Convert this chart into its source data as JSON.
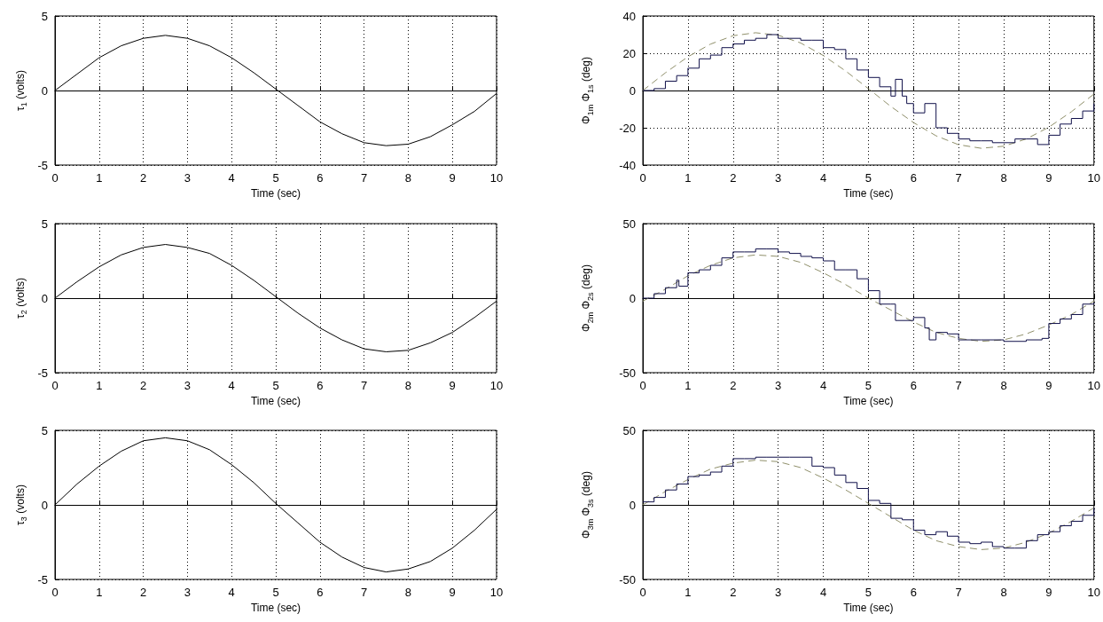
{
  "chart_data": [
    {
      "type": "line",
      "xlabel": "Time (sec)",
      "ylabel": "τ$_{1}$ (volts)",
      "xlim": [
        0,
        10
      ],
      "xticks": [
        0,
        1,
        2,
        3,
        4,
        5,
        6,
        7,
        8,
        9,
        10
      ],
      "ylim": [
        -5,
        5
      ],
      "yticks": [
        -5,
        0,
        5
      ],
      "grid": true,
      "marker": "none",
      "x": [
        0,
        0.5,
        1,
        1.5,
        2,
        2.5,
        3,
        3.5,
        4,
        4.5,
        5,
        5.5,
        6,
        6.5,
        7,
        7.5,
        8,
        8.5,
        9,
        9.5,
        10
      ],
      "series": [
        {
          "color": "#000000",
          "values": [
            0,
            1.1,
            2.2,
            3.0,
            3.5,
            3.7,
            3.5,
            3.0,
            2.2,
            1.2,
            0.1,
            -1.0,
            -2.1,
            -2.9,
            -3.5,
            -3.7,
            -3.6,
            -3.1,
            -2.3,
            -1.4,
            -0.2
          ]
        }
      ]
    },
    {
      "type": "step",
      "xlabel": "Time (sec)",
      "ylabel": "Φ$_{1m}$ Φ$_{1s}$ (deg)",
      "xlim": [
        0,
        10
      ],
      "xticks": [
        0,
        1,
        2,
        3,
        4,
        5,
        6,
        7,
        8,
        9,
        10
      ],
      "ylim": [
        -40,
        40
      ],
      "yticks": [
        -40,
        -20,
        0,
        20,
        40
      ],
      "grid": true,
      "marker": "none",
      "series": [
        {
          "type": "line",
          "line_style": "dashed",
          "color": "#8f8f6a",
          "x": [
            0,
            0.5,
            1,
            1.5,
            2,
            2.5,
            3,
            3.5,
            4,
            4.5,
            5,
            5.5,
            6,
            6.5,
            7,
            7.5,
            8,
            8.5,
            9,
            9.5,
            10
          ],
          "values": [
            0,
            9.5,
            18.1,
            24.9,
            29.4,
            31,
            29.7,
            25.5,
            18.8,
            10.4,
            1,
            -8.6,
            -17.2,
            -24.3,
            -29.1,
            -31,
            -29.9,
            -26,
            -19.7,
            -11.4,
            -1.9
          ]
        },
        {
          "color": "#10104a",
          "x": [
            0,
            0.25,
            0.5,
            0.75,
            1,
            1.25,
            1.5,
            1.75,
            2,
            2.25,
            2.5,
            2.75,
            3,
            3.25,
            3.5,
            3.75,
            4,
            4.25,
            4.5,
            4.75,
            5,
            5.25,
            5.5,
            5.6,
            5.75,
            5.85,
            6,
            6.25,
            6.5,
            6.75,
            7,
            7.25,
            7.5,
            7.75,
            8,
            8.25,
            8.5,
            8.75,
            9,
            9.25,
            9.5,
            9.75,
            10
          ],
          "values": [
            0,
            1,
            5,
            8,
            12,
            17,
            19,
            23,
            25,
            27,
            28,
            30,
            28,
            28,
            27,
            27,
            23,
            22,
            17,
            11,
            7,
            2,
            -3,
            6,
            -3,
            -7,
            -12,
            -7,
            -20,
            -23,
            -26,
            -27,
            -27,
            -28,
            -28,
            -26,
            -26,
            -29,
            -24,
            -18,
            -15,
            -11,
            -7
          ]
        }
      ]
    },
    {
      "type": "line",
      "xlabel": "Time (sec)",
      "ylabel": "τ$_{2}$ (volts)",
      "xlim": [
        0,
        10
      ],
      "xticks": [
        0,
        1,
        2,
        3,
        4,
        5,
        6,
        7,
        8,
        9,
        10
      ],
      "ylim": [
        -5,
        5
      ],
      "yticks": [
        -5,
        0,
        5
      ],
      "grid": true,
      "marker": "none",
      "x": [
        0,
        0.5,
        1,
        1.5,
        2,
        2.5,
        3,
        3.5,
        4,
        4.5,
        5,
        5.5,
        6,
        6.5,
        7,
        7.5,
        8,
        8.5,
        9,
        9.5,
        10
      ],
      "series": [
        {
          "color": "#000000",
          "values": [
            0,
            1.1,
            2.1,
            2.9,
            3.4,
            3.6,
            3.4,
            3.0,
            2.2,
            1.2,
            0.1,
            -1.0,
            -2.0,
            -2.8,
            -3.4,
            -3.6,
            -3.5,
            -3.0,
            -2.3,
            -1.3,
            -0.2
          ]
        }
      ]
    },
    {
      "type": "step",
      "xlabel": "Time (sec)",
      "ylabel": "Φ$_{2m}$ Φ$_{2s}$ (deg)",
      "xlim": [
        0,
        10
      ],
      "xticks": [
        0,
        1,
        2,
        3,
        4,
        5,
        6,
        7,
        8,
        9,
        10
      ],
      "ylim": [
        -50,
        50
      ],
      "yticks": [
        -50,
        0,
        50
      ],
      "grid": true,
      "marker": "none",
      "series": [
        {
          "type": "line",
          "line_style": "dashed",
          "color": "#8f8f6a",
          "x": [
            0,
            0.5,
            1,
            1.5,
            2,
            2.5,
            3,
            3.5,
            4,
            4.5,
            5,
            5.5,
            6,
            6.5,
            7,
            7.5,
            8,
            8.5,
            9,
            9.5,
            10
          ],
          "values": [
            -2,
            6,
            15,
            22,
            27,
            29,
            28,
            24,
            17,
            9,
            0,
            -8,
            -16,
            -23,
            -27,
            -29,
            -28,
            -24,
            -18,
            -11,
            -2
          ]
        },
        {
          "color": "#10104a",
          "x": [
            0,
            0.25,
            0.5,
            0.75,
            0.8,
            1,
            1.25,
            1.5,
            1.75,
            2,
            2.25,
            2.5,
            2.75,
            3,
            3.25,
            3.5,
            3.75,
            4,
            4.25,
            4.5,
            4.75,
            5,
            5.25,
            5.5,
            5.6,
            6,
            6.25,
            6.35,
            6.5,
            6.75,
            7,
            7.5,
            8,
            8.5,
            8.85,
            9,
            9.25,
            9.5,
            9.75,
            10
          ],
          "values": [
            0,
            3,
            7,
            12,
            8,
            17,
            19,
            22,
            27,
            31,
            31,
            33,
            33,
            31,
            30,
            28,
            27,
            25,
            19,
            19,
            13,
            5,
            -4,
            -4,
            -15,
            -13,
            -20,
            -28,
            -23,
            -24,
            -28,
            -28,
            -29,
            -28,
            -27,
            -17,
            -14,
            -11,
            -4,
            -3
          ]
        }
      ]
    },
    {
      "type": "line",
      "xlabel": "Time (sec)",
      "ylabel": "τ$_{3}$ (volts)",
      "xlim": [
        0,
        10
      ],
      "xticks": [
        0,
        1,
        2,
        3,
        4,
        5,
        6,
        7,
        8,
        9,
        10
      ],
      "ylim": [
        -5,
        5
      ],
      "yticks": [
        -5,
        0,
        5
      ],
      "grid": true,
      "marker": "none",
      "x": [
        0,
        0.5,
        1,
        1.5,
        2,
        2.5,
        3,
        3.5,
        4,
        4.5,
        5,
        5.5,
        6,
        6.5,
        7,
        7.5,
        8,
        8.5,
        9,
        9.5,
        10
      ],
      "series": [
        {
          "color": "#000000",
          "values": [
            0,
            1.4,
            2.6,
            3.6,
            4.3,
            4.5,
            4.3,
            3.7,
            2.7,
            1.5,
            0.1,
            -1.2,
            -2.5,
            -3.5,
            -4.2,
            -4.5,
            -4.3,
            -3.8,
            -2.9,
            -1.7,
            -0.3
          ]
        }
      ]
    },
    {
      "type": "step",
      "xlabel": "Time (sec)",
      "ylabel": "Φ$_{3m}$ Φ$_{3s}$ (deg)",
      "xlim": [
        0,
        10
      ],
      "xticks": [
        0,
        1,
        2,
        3,
        4,
        5,
        6,
        7,
        8,
        9,
        10
      ],
      "ylim": [
        -50,
        50
      ],
      "yticks": [
        -50,
        0,
        50
      ],
      "grid": true,
      "marker": "none",
      "series": [
        {
          "type": "line",
          "line_style": "dashed",
          "color": "#8f8f6a",
          "x": [
            0,
            0.5,
            1,
            1.5,
            2,
            2.5,
            3,
            3.5,
            4,
            4.5,
            5,
            5.5,
            6,
            6.5,
            7,
            7.5,
            8,
            8.5,
            9,
            9.5,
            10
          ],
          "values": [
            0,
            9,
            17,
            24,
            28,
            30,
            29,
            25,
            18,
            10,
            1,
            -8,
            -17,
            -24,
            -28,
            -30,
            -29,
            -25,
            -19,
            -11,
            -2
          ]
        },
        {
          "color": "#10104a",
          "x": [
            0,
            0.25,
            0.5,
            0.75,
            1,
            1.25,
            1.5,
            1.75,
            2,
            2.25,
            2.5,
            2.75,
            3,
            3.25,
            3.5,
            3.75,
            4,
            4.25,
            4.5,
            4.75,
            5,
            5.25,
            5.5,
            5.75,
            6,
            6.25,
            6.5,
            6.75,
            7,
            7.25,
            7.5,
            7.75,
            8,
            8.25,
            8.5,
            8.75,
            9,
            9.25,
            9.5,
            9.75,
            10
          ],
          "values": [
            2,
            5,
            10,
            14,
            19,
            20,
            22,
            26,
            31,
            31,
            32,
            32,
            32,
            32,
            32,
            26,
            25,
            20,
            15,
            11,
            3,
            1,
            -9,
            -10,
            -17,
            -20,
            -18,
            -21,
            -25,
            -26,
            -25,
            -28,
            -29,
            -29,
            -24,
            -20,
            -18,
            -14,
            -11,
            -7,
            -2
          ]
        }
      ]
    }
  ]
}
